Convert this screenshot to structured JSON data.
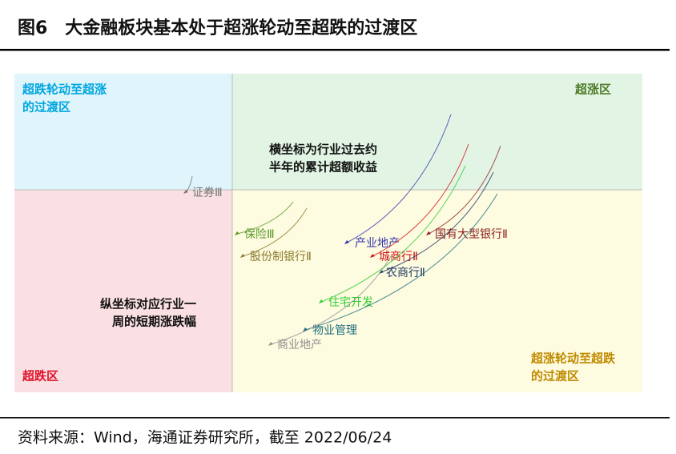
{
  "header": {
    "title": "图6　大金融板块基本处于超涨轮动至超跌的过渡区"
  },
  "quadrants": [
    {
      "lines": [
        "超跌轮动至超涨",
        "的过渡区"
      ],
      "color": "#00a6e0"
    },
    {
      "lines": [
        "超涨区"
      ],
      "color": "#4e7a28"
    },
    {
      "lines": [
        "超跌区"
      ],
      "color": "#e0102a"
    },
    {
      "lines": [
        "超涨轮动至超跌",
        "的过渡区"
      ],
      "color": "#c08a00"
    }
  ],
  "annotations": [
    {
      "lines": [
        "横坐标为行业过去约",
        "半年的累计超额收益"
      ]
    },
    {
      "lines": [
        "纵坐标对应行业一",
        "周的短期涨跌幅"
      ]
    }
  ],
  "series": [
    {
      "name": "证券Ⅲ",
      "color": "#777777"
    },
    {
      "name": "保险Ⅲ",
      "color": "#5a9a2a"
    },
    {
      "name": "股份制银行Ⅱ",
      "color": "#8a7a2a"
    },
    {
      "name": "产业地产",
      "color": "#3535b0"
    },
    {
      "name": "国有大型银行Ⅱ",
      "color": "#8b2020"
    },
    {
      "name": "城商行Ⅱ",
      "color": "#d01010"
    },
    {
      "name": "农商行Ⅱ",
      "color": "#1f3864"
    },
    {
      "name": "住宅开发",
      "color": "#33cc33"
    },
    {
      "name": "物业管理",
      "color": "#1f6f7f"
    },
    {
      "name": "商业地产",
      "color": "#909090"
    }
  ],
  "source": "资料来源：Wind，海通证券研究所，截至 2022/06/24"
}
